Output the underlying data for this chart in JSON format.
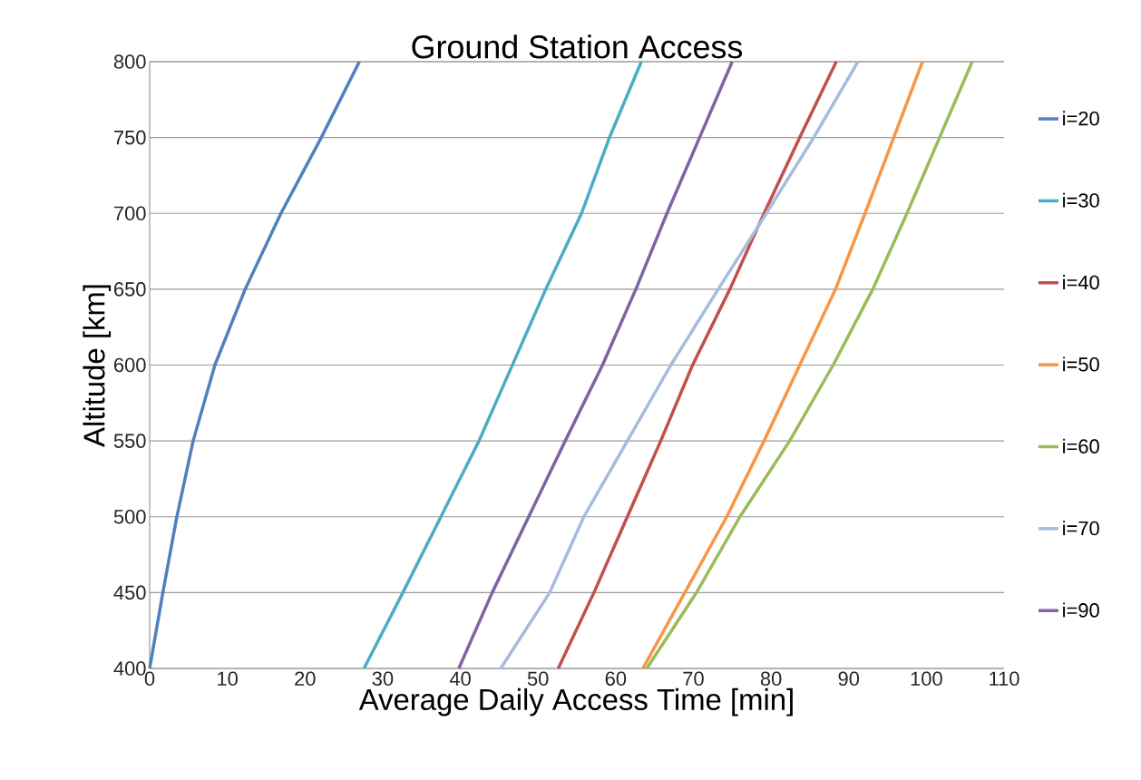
{
  "chart_data": {
    "type": "line",
    "title": "Ground Station Access",
    "xlabel": "Average Daily Access Time [min]",
    "ylabel": "Altitude [km]",
    "xlim": [
      0,
      110
    ],
    "xticks": [
      0,
      10,
      20,
      30,
      40,
      50,
      60,
      70,
      80,
      90,
      100,
      110
    ],
    "ylim": [
      400,
      800
    ],
    "yticks": [
      400,
      450,
      500,
      550,
      600,
      650,
      700,
      750,
      800
    ],
    "grid": "y",
    "legend": "right",
    "series": [
      {
        "name": "i=20",
        "color": "#4f81bd",
        "x": [
          0,
          1.7,
          3.5,
          5.6,
          8.4,
          12.3,
          16.9,
          22.1,
          27.0
        ],
        "values": [
          400,
          450,
          500,
          550,
          600,
          650,
          700,
          750,
          800
        ]
      },
      {
        "name": "i=30",
        "color": "#4bacc6",
        "x": [
          27.6,
          32.6,
          37.5,
          42.4,
          46.7,
          51.0,
          55.6,
          59.2,
          63.3
        ],
        "values": [
          400,
          450,
          500,
          550,
          600,
          650,
          700,
          750,
          800
        ]
      },
      {
        "name": "i=40",
        "color": "#c0504d",
        "x": [
          52.6,
          57.2,
          61.5,
          65.8,
          69.9,
          74.7,
          79.1,
          83.7,
          88.4
        ],
        "values": [
          400,
          450,
          500,
          550,
          600,
          650,
          700,
          750,
          800
        ]
      },
      {
        "name": "i=50",
        "color": "#f79646",
        "x": [
          63.5,
          68.9,
          74.3,
          79.1,
          83.7,
          88.3,
          92.1,
          95.8,
          99.5
        ],
        "values": [
          400,
          450,
          500,
          550,
          600,
          650,
          700,
          750,
          800
        ]
      },
      {
        "name": "i=60",
        "color": "#9bbb59",
        "x": [
          64.0,
          70.4,
          76.0,
          82.4,
          88.0,
          93.1,
          97.5,
          101.7,
          105.9
        ],
        "values": [
          400,
          450,
          500,
          550,
          600,
          650,
          700,
          750,
          800
        ]
      },
      {
        "name": "i=70",
        "color": "#a5bcdd",
        "x": [
          45.2,
          51.5,
          55.9,
          61.5,
          67.1,
          73.2,
          79.4,
          85.5,
          91.2
        ],
        "values": [
          400,
          450,
          500,
          550,
          600,
          650,
          700,
          750,
          800
        ]
      },
      {
        "name": "i=90",
        "color": "#8064a2",
        "x": [
          39.8,
          44.1,
          48.8,
          53.5,
          58.3,
          62.6,
          66.6,
          70.8,
          75.0
        ],
        "values": [
          400,
          450,
          500,
          550,
          600,
          650,
          700,
          750,
          800
        ]
      }
    ]
  }
}
